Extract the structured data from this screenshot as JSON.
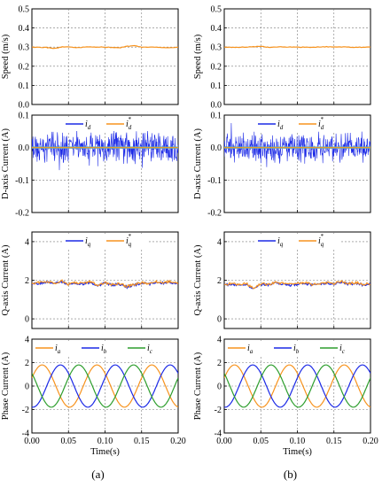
{
  "figure_labels": [
    "(a)",
    "(b)"
  ],
  "colors": {
    "orange": "#f7931e",
    "blue": "#1c2ae6",
    "green": "#2e9e2e",
    "ref_line": "#2ab8f0",
    "grid": "#7a7a7a",
    "frame": "#000000"
  },
  "chart_data": [
    {
      "panel": "(a)",
      "row": 1,
      "type": "line",
      "ylabel": "Speed (m/s)",
      "xlabel": "",
      "xlim": [
        0,
        0.2
      ],
      "ylim": [
        0,
        0.5
      ],
      "yticks": [
        "0.0",
        "0.1",
        "0.2",
        "0.3",
        "0.4",
        "0.5"
      ],
      "xticks": [],
      "grid": true,
      "series": [
        {
          "name": "",
          "color": "orange",
          "x": [
            0,
            0.02,
            0.03,
            0.04,
            0.05,
            0.06,
            0.08,
            0.1,
            0.12,
            0.13,
            0.14,
            0.15,
            0.17,
            0.19,
            0.2
          ],
          "y": [
            0.3,
            0.298,
            0.292,
            0.3,
            0.302,
            0.297,
            0.301,
            0.3,
            0.296,
            0.304,
            0.308,
            0.299,
            0.3,
            0.297,
            0.299
          ]
        }
      ]
    },
    {
      "panel": "(a)",
      "row": 2,
      "type": "line",
      "ylabel": "D-axis Current (A)",
      "xlabel": "",
      "xlim": [
        0,
        0.2
      ],
      "ylim": [
        -0.2,
        0.1
      ],
      "yticks": [
        "0.1",
        "0.0",
        "-0.1",
        "-0.2"
      ],
      "xticks": [],
      "grid": true,
      "legend": {
        "placement": "top-center",
        "entries": [
          "i_d",
          "i_d^*"
        ]
      },
      "series": [
        {
          "name": "i_d",
          "color": "blue",
          "noise_amplitude": 0.06,
          "center": 0
        },
        {
          "name": "i_d^*",
          "color": "orange",
          "x": [
            0,
            0.2
          ],
          "y": [
            0,
            0
          ]
        }
      ]
    },
    {
      "panel": "(a)",
      "row": 3,
      "type": "line",
      "ylabel": "Q-axis Current (A)",
      "xlabel": "",
      "xlim": [
        0,
        0.2
      ],
      "ylim": [
        -0.5,
        4.5
      ],
      "yticks": [
        "0",
        "2",
        "4"
      ],
      "xticks": [],
      "grid": true,
      "legend": {
        "placement": "top-center",
        "entries": [
          "i_q",
          "i_q^*"
        ]
      },
      "series": [
        {
          "name": "i_q",
          "color": "blue",
          "x": [
            0,
            0.01,
            0.02,
            0.03,
            0.04,
            0.05,
            0.06,
            0.07,
            0.08,
            0.09,
            0.1,
            0.11,
            0.12,
            0.13,
            0.14,
            0.15,
            0.16,
            0.17,
            0.18,
            0.19,
            0.2
          ],
          "y": [
            1.8,
            1.85,
            1.9,
            1.8,
            1.95,
            1.75,
            1.85,
            1.8,
            1.9,
            1.7,
            1.85,
            1.75,
            1.8,
            1.65,
            1.75,
            1.85,
            1.8,
            1.9,
            1.85,
            1.9,
            1.8
          ]
        },
        {
          "name": "i_q^*",
          "color": "orange",
          "x": [
            0,
            0.01,
            0.02,
            0.03,
            0.04,
            0.05,
            0.06,
            0.07,
            0.08,
            0.09,
            0.1,
            0.11,
            0.12,
            0.13,
            0.14,
            0.15,
            0.16,
            0.17,
            0.18,
            0.19,
            0.2
          ],
          "y": [
            1.8,
            1.85,
            1.9,
            1.8,
            1.95,
            1.75,
            1.85,
            1.8,
            1.9,
            1.7,
            1.85,
            1.75,
            1.8,
            1.65,
            1.75,
            1.85,
            1.8,
            1.9,
            1.85,
            1.9,
            1.8
          ]
        }
      ]
    },
    {
      "panel": "(a)",
      "row": 4,
      "type": "line",
      "ylabel": "Phase Current (A)",
      "xlabel": "Time(s)",
      "xlim": [
        0,
        0.2
      ],
      "ylim": [
        -4,
        4
      ],
      "yticks": [
        "4",
        "2",
        "0",
        "-2",
        "-4"
      ],
      "xticks": [
        "0.00",
        "0.05",
        "0.10",
        "0.15",
        "0.20"
      ],
      "grid": true,
      "legend": {
        "placement": "top",
        "entries": [
          "i_a",
          "i_b",
          "i_c"
        ]
      },
      "series": [
        {
          "name": "i_a",
          "color": "orange",
          "amplitude": 1.8,
          "period": 0.075,
          "phase_deg": 0
        },
        {
          "name": "i_b",
          "color": "blue",
          "amplitude": 1.8,
          "period": 0.075,
          "phase_deg": -120
        },
        {
          "name": "i_c",
          "color": "green",
          "amplitude": 1.8,
          "period": 0.075,
          "phase_deg": 120
        }
      ]
    },
    {
      "panel": "(b)",
      "row": 1,
      "type": "line",
      "ylabel": "Speed (m/s)",
      "xlabel": "",
      "xlim": [
        0,
        0.2
      ],
      "ylim": [
        0,
        0.5
      ],
      "yticks": [
        "0.0",
        "0.1",
        "0.2",
        "0.3",
        "0.4",
        "0.5"
      ],
      "xticks": [],
      "grid": true,
      "series": [
        {
          "name": "",
          "color": "orange",
          "x": [
            0,
            0.02,
            0.04,
            0.05,
            0.06,
            0.08,
            0.1,
            0.12,
            0.14,
            0.15,
            0.16,
            0.18,
            0.2
          ],
          "y": [
            0.3,
            0.299,
            0.302,
            0.305,
            0.299,
            0.301,
            0.3,
            0.299,
            0.302,
            0.3,
            0.301,
            0.299,
            0.3
          ]
        }
      ]
    },
    {
      "panel": "(b)",
      "row": 2,
      "type": "line",
      "ylabel": "D-axis Current (A)",
      "xlabel": "",
      "xlim": [
        0,
        0.2
      ],
      "ylim": [
        -0.2,
        0.1
      ],
      "yticks": [
        "0.1",
        "0.0",
        "-0.1",
        "-0.2"
      ],
      "xticks": [],
      "grid": true,
      "legend": {
        "placement": "top-center",
        "entries": [
          "i_d",
          "i_d^*"
        ]
      },
      "series": [
        {
          "name": "i_d",
          "color": "blue",
          "noise_amplitude": 0.055,
          "center": 0
        },
        {
          "name": "i_d^*",
          "color": "orange",
          "x": [
            0,
            0.2
          ],
          "y": [
            0,
            0
          ]
        }
      ]
    },
    {
      "panel": "(b)",
      "row": 3,
      "type": "line",
      "ylabel": "Q-axis Current (A)",
      "xlabel": "",
      "xlim": [
        0,
        0.2
      ],
      "ylim": [
        -0.5,
        4.5
      ],
      "yticks": [
        "0",
        "2",
        "4"
      ],
      "xticks": [],
      "grid": true,
      "legend": {
        "placement": "top-center",
        "entries": [
          "i_q",
          "i_q^*"
        ]
      },
      "series": [
        {
          "name": "i_q",
          "color": "blue",
          "x": [
            0,
            0.01,
            0.02,
            0.03,
            0.04,
            0.05,
            0.06,
            0.07,
            0.08,
            0.09,
            0.1,
            0.11,
            0.12,
            0.13,
            0.14,
            0.15,
            0.16,
            0.17,
            0.18,
            0.19,
            0.2
          ],
          "y": [
            1.75,
            1.8,
            1.75,
            1.8,
            1.55,
            1.8,
            1.75,
            1.85,
            1.8,
            1.75,
            1.8,
            1.85,
            1.75,
            1.8,
            1.85,
            1.8,
            1.9,
            1.8,
            1.85,
            1.75,
            1.8
          ]
        },
        {
          "name": "i_q^*",
          "color": "orange",
          "x": [
            0,
            0.01,
            0.02,
            0.03,
            0.04,
            0.05,
            0.06,
            0.07,
            0.08,
            0.09,
            0.1,
            0.11,
            0.12,
            0.13,
            0.14,
            0.15,
            0.16,
            0.17,
            0.18,
            0.19,
            0.2
          ],
          "y": [
            1.75,
            1.8,
            1.75,
            1.8,
            1.55,
            1.8,
            1.75,
            1.85,
            1.8,
            1.75,
            1.8,
            1.85,
            1.75,
            1.8,
            1.85,
            1.8,
            1.9,
            1.8,
            1.85,
            1.75,
            1.8
          ]
        }
      ]
    },
    {
      "panel": "(b)",
      "row": 4,
      "type": "line",
      "ylabel": "Phase Current (A)",
      "xlabel": "Time(s)",
      "xlim": [
        0,
        0.2
      ],
      "ylim": [
        -4,
        4
      ],
      "yticks": [
        "4",
        "2",
        "0",
        "-2",
        "-4"
      ],
      "xticks": [
        "0.00",
        "0.05",
        "0.10",
        "0.15",
        "0.20"
      ],
      "grid": true,
      "legend": {
        "placement": "top",
        "entries": [
          "i_a",
          "i_b",
          "i_c"
        ]
      },
      "series": [
        {
          "name": "i_a",
          "color": "orange",
          "amplitude": 1.8,
          "period": 0.075,
          "phase_deg": 0
        },
        {
          "name": "i_b",
          "color": "blue",
          "amplitude": 1.8,
          "period": 0.075,
          "phase_deg": -120
        },
        {
          "name": "i_c",
          "color": "green",
          "amplitude": 1.8,
          "period": 0.075,
          "phase_deg": 120
        }
      ]
    }
  ]
}
